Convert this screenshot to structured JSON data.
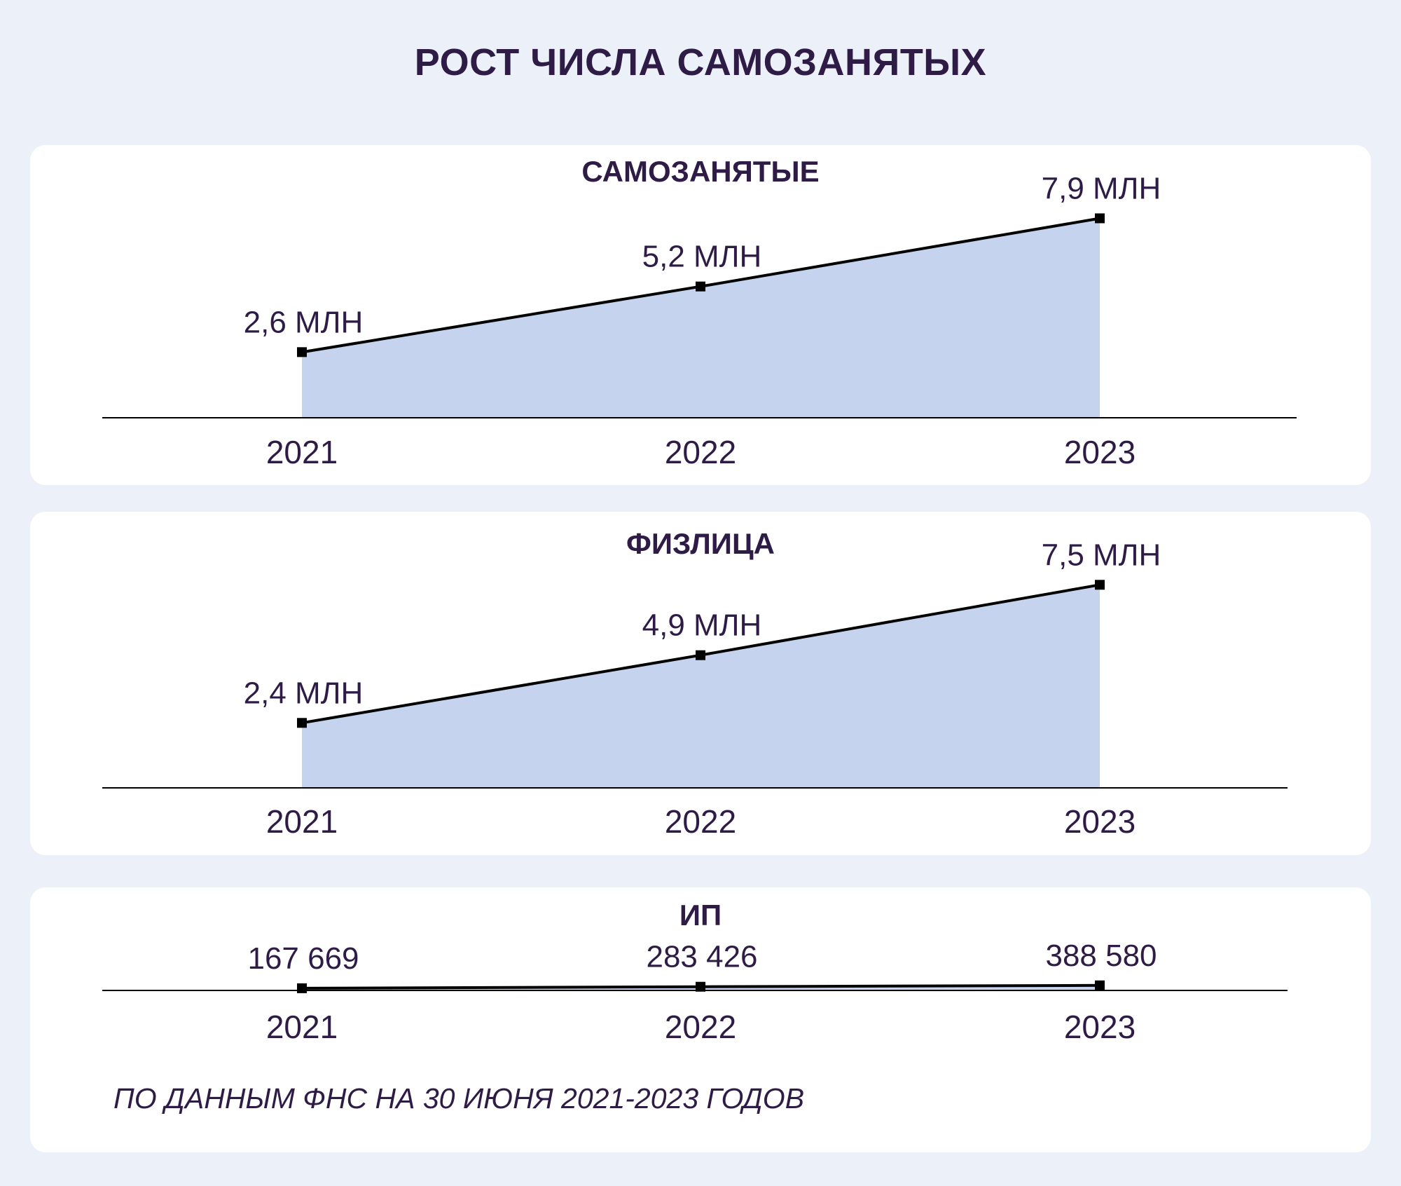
{
  "title": "РОСТ ЧИСЛА САМОЗАНЯТЫХ",
  "source": "ПО ДАННЫМ ФНС НА 30 ИЮНЯ 2021-2023 ГОДОВ",
  "colors": {
    "background": "#ecf0f9",
    "panel": "#ffffff",
    "fill": "#c5d3ee",
    "line": "#000000",
    "text": "#2e1c47"
  },
  "chart_data": [
    {
      "type": "area",
      "title": "САМОЗАНЯТЫЕ",
      "categories": [
        "2021",
        "2022",
        "2023"
      ],
      "values": [
        2.6,
        5.2,
        7.9
      ],
      "labels": [
        "2,6 МЛН",
        "5,2 МЛН",
        "7,9 МЛН"
      ],
      "unit": "млн",
      "ylim": [
        0,
        10.8
      ],
      "grid": false
    },
    {
      "type": "area",
      "title": "ФИЗЛИЦА",
      "categories": [
        "2021",
        "2022",
        "2023"
      ],
      "values": [
        2.4,
        4.9,
        7.5
      ],
      "labels": [
        "2,4 МЛН",
        "4,9 МЛН",
        "7,5 МЛН"
      ],
      "unit": "млн",
      "ylim": [
        0,
        10.2
      ],
      "grid": false
    },
    {
      "type": "area",
      "title": "ИП",
      "categories": [
        "2021",
        "2022",
        "2023"
      ],
      "values": [
        167669,
        283426,
        388580
      ],
      "labels": [
        "167 669",
        "283 426",
        "388 580"
      ],
      "ylim": [
        0,
        7900000
      ],
      "grid": false
    }
  ]
}
